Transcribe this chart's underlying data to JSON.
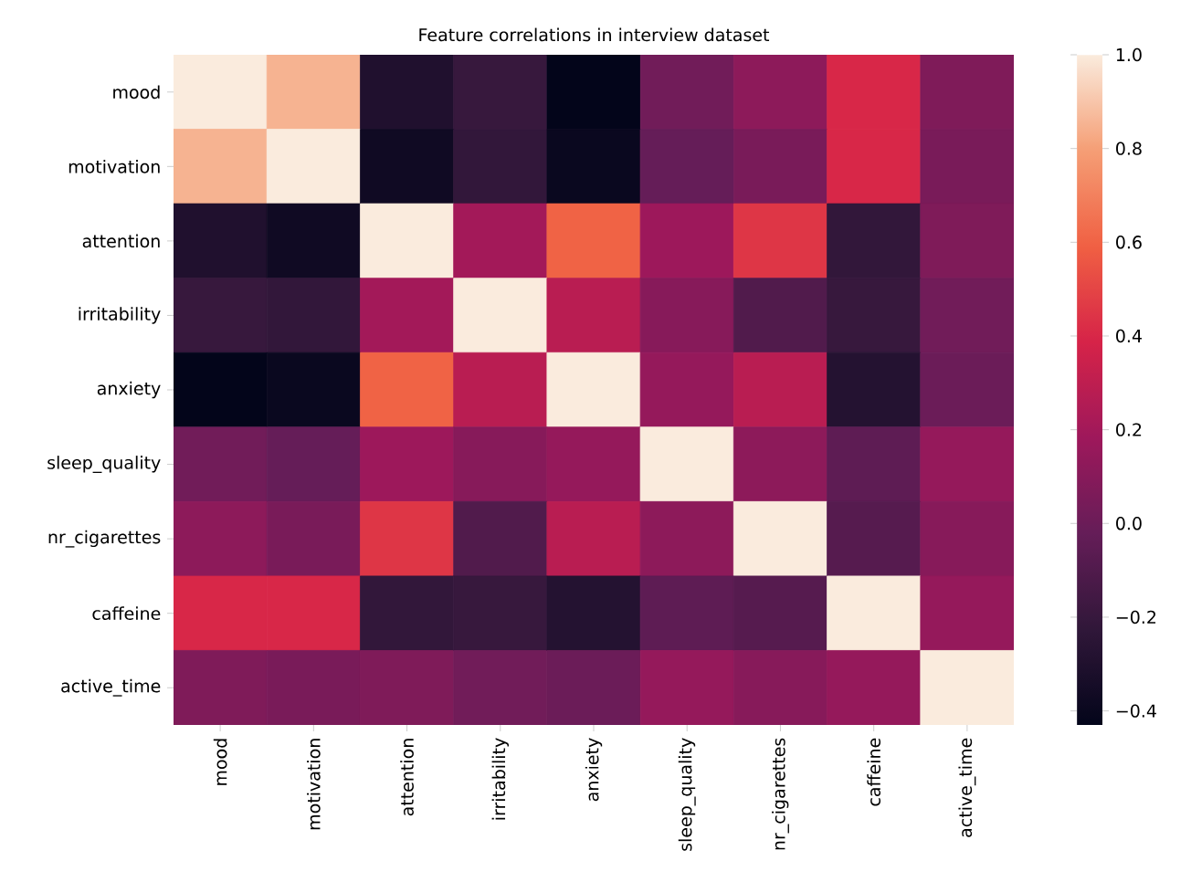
{
  "chart_data": {
    "type": "heatmap",
    "title": "Feature correlations in interview dataset",
    "categories": [
      "mood",
      "motivation",
      "attention",
      "irritability",
      "anxiety",
      "sleep_quality",
      "nr_cigarettes",
      "caffeine",
      "active_time"
    ],
    "y_categories": [
      "mood",
      "motivation",
      "attention",
      "irritability",
      "anxiety",
      "sleep_quality",
      "nr_cigarettes",
      "caffeine",
      "active_time"
    ],
    "cells": [
      [
        1.0,
        0.85,
        -0.3,
        -0.2,
        -0.43,
        0.02,
        0.12,
        0.4,
        0.07
      ],
      [
        0.85,
        1.0,
        -0.37,
        -0.22,
        -0.4,
        -0.02,
        0.05,
        0.4,
        0.05
      ],
      [
        -0.3,
        -0.37,
        1.0,
        0.2,
        0.6,
        0.18,
        0.45,
        -0.22,
        0.07
      ],
      [
        -0.2,
        -0.22,
        0.2,
        1.0,
        0.28,
        0.1,
        -0.1,
        -0.2,
        0.02
      ],
      [
        -0.43,
        -0.4,
        0.6,
        0.28,
        1.0,
        0.15,
        0.28,
        -0.28,
        0.0
      ],
      [
        0.02,
        -0.02,
        0.18,
        0.1,
        0.15,
        1.0,
        0.12,
        -0.05,
        0.15
      ],
      [
        0.12,
        0.05,
        0.45,
        -0.1,
        0.28,
        0.12,
        1.0,
        -0.08,
        0.1
      ],
      [
        0.4,
        0.4,
        -0.22,
        -0.2,
        -0.28,
        -0.05,
        -0.08,
        1.0,
        0.15
      ],
      [
        0.07,
        0.05,
        0.07,
        0.02,
        0.0,
        0.15,
        0.1,
        0.15,
        1.0
      ]
    ],
    "clim": [
      -0.43,
      1.0
    ],
    "cticks": [
      {
        "value": -0.4,
        "label": "−0.4"
      },
      {
        "value": -0.2,
        "label": "−0.2"
      },
      {
        "value": 0.0,
        "label": "0.0"
      },
      {
        "value": 0.2,
        "label": "0.2"
      },
      {
        "value": 0.4,
        "label": "0.4"
      },
      {
        "value": 0.6,
        "label": "0.6"
      },
      {
        "value": 0.8,
        "label": "0.8"
      },
      {
        "value": 1.0,
        "label": "1.0"
      }
    ]
  }
}
